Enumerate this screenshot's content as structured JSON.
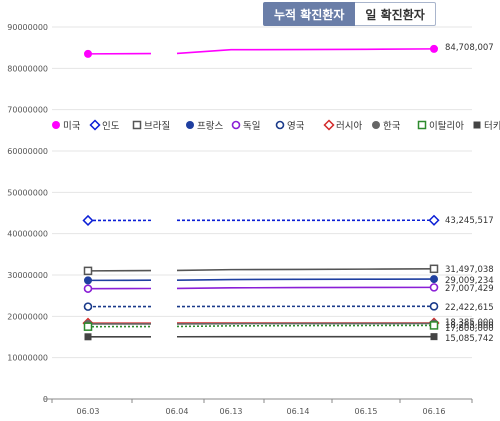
{
  "tabs": {
    "cumulative": "누적 확진환자",
    "daily": "일 확진환자"
  },
  "chart_data": {
    "type": "line",
    "x": [
      "06.03",
      "06.04",
      "06.13",
      "06.14",
      "06.15",
      "06.16"
    ],
    "ylim": [
      0,
      90000000
    ],
    "yticks": [
      "90000000",
      "80000000",
      "70000000",
      "60000000",
      "50000000",
      "40000000",
      "30000000",
      "20000000",
      "10000000",
      "0"
    ],
    "legend_position": "top-left",
    "grid": true,
    "series": [
      {
        "name": "미국",
        "color": "#ff00ff",
        "marker": "disc",
        "dash": "",
        "values": [
          83500000,
          83600000,
          84500000,
          84550000,
          84600000,
          84708007
        ],
        "end_label": "84,708,007"
      },
      {
        "name": "인도",
        "color": "#0b1fd6",
        "marker": "diamond",
        "dash": "3,2",
        "values": [
          43200000,
          43220000,
          43230000,
          43235000,
          43240000,
          43245517
        ],
        "end_label": "43,245,517"
      },
      {
        "name": "브라질",
        "color": "#555555",
        "marker": "square-hollow",
        "dash": "",
        "values": [
          31000000,
          31100000,
          31300000,
          31350000,
          31420000,
          31497038
        ],
        "end_label": "31,497,038"
      },
      {
        "name": "프랑스",
        "color": "#1f3fa0",
        "marker": "disc",
        "dash": "",
        "values": [
          28700000,
          28750000,
          28900000,
          28950000,
          28980000,
          29009234
        ],
        "end_label": "29,009,234"
      },
      {
        "name": "독일",
        "color": "#8a1fd6",
        "marker": "circle-hollow",
        "dash": "",
        "values": [
          26700000,
          26750000,
          26900000,
          26950000,
          26980000,
          27007429
        ],
        "end_label": "27,007,429"
      },
      {
        "name": "영국",
        "color": "#1a3a8a",
        "marker": "circle-hollow",
        "dash": "3,2",
        "values": [
          22350000,
          22370000,
          22400000,
          22410000,
          22415000,
          22422615
        ],
        "end_label": "22,422,615"
      },
      {
        "name": "러시아",
        "color": "#d32a2a",
        "marker": "diamond",
        "dash": "",
        "values": [
          18350000,
          18360000,
          18370000,
          18375000,
          18380000,
          18385000
        ],
        "end_label": "18,385,000"
      },
      {
        "name": "한국",
        "color": "#666666",
        "marker": "disc",
        "dash": "",
        "values": [
          18150000,
          18170000,
          18230000,
          18240000,
          18250000,
          18265000
        ],
        "end_label": "18,265,000"
      },
      {
        "name": "이탈리아",
        "color": "#2e8b2e",
        "marker": "square-hollow",
        "dash": "2,2",
        "values": [
          17500000,
          17550000,
          17700000,
          17750000,
          17780000,
          17800000
        ],
        "end_label": "17,800,000"
      },
      {
        "name": "터키",
        "color": "#444444",
        "marker": "square",
        "dash": "",
        "values": [
          15050000,
          15060000,
          15070000,
          15075000,
          15080000,
          15085742
        ],
        "end_label": "15,085,742"
      }
    ]
  }
}
